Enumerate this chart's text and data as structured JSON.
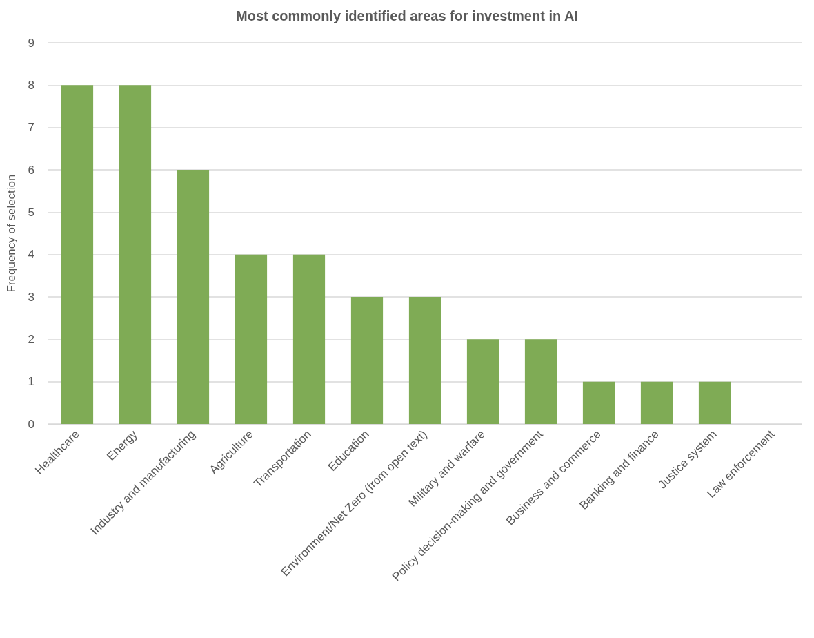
{
  "chart_data": {
    "type": "bar",
    "title": "Most commonly identified areas for investment in AI",
    "ylabel": "Frequency of selection",
    "categories": [
      "Healthcare",
      "Energy",
      "Industry and manufacturing",
      "Agriculture",
      "Transportation",
      "Education",
      "Environment/Net Zero (from open text)",
      "Military and warfare",
      "Policy decision-making and government",
      "Business and commerce",
      "Banking and finance",
      "Justice system",
      "Law enforcement"
    ],
    "values": [
      8,
      8,
      6,
      4,
      4,
      3,
      3,
      2,
      2,
      1,
      1,
      1,
      0
    ],
    "color": "#7fab55",
    "ylim": [
      0,
      9
    ],
    "yticks": [
      0,
      1,
      2,
      3,
      4,
      5,
      6,
      7,
      8,
      9
    ],
    "grid": "y"
  }
}
